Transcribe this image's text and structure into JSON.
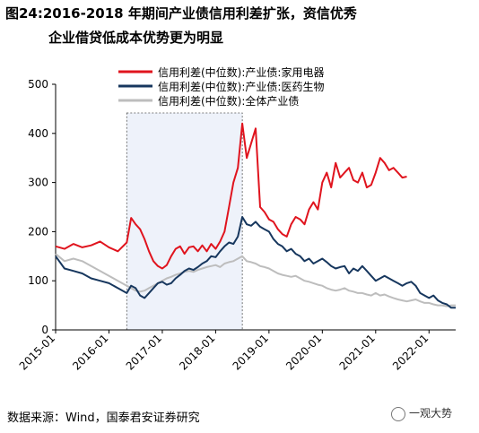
{
  "title_line1": "图24:2016-2018 年期间产业债信用利差扩张，资信优秀",
  "title_line2": "企业借贷低成本优势更为明显",
  "source_note": "数据来源：Wind，国泰君安证券研究",
  "watermark_text": "一观大势",
  "chart_data": {
    "type": "line",
    "title": "",
    "xlabel": "",
    "ylabel": "",
    "ylim": [
      0,
      500
    ],
    "yticks": [
      0,
      100,
      200,
      300,
      400,
      500
    ],
    "xlim": [
      "2015-01",
      "2022-07"
    ],
    "xticks": [
      "2015-01",
      "2016-01",
      "2017-01",
      "2018-01",
      "2019-01",
      "2020-01",
      "2021-01",
      "2022-01"
    ],
    "grid": false,
    "legend_position": "top-right",
    "shaded_period": [
      "2016-05",
      "2018-07"
    ],
    "series": [
      {
        "name": "信用利差(中位数):产业债:家用电器",
        "color": "#e0141e",
        "points": [
          [
            "2015-01",
            170
          ],
          [
            "2015-03",
            165
          ],
          [
            "2015-05",
            175
          ],
          [
            "2015-07",
            168
          ],
          [
            "2015-09",
            172
          ],
          [
            "2015-11",
            180
          ],
          [
            "2016-01",
            168
          ],
          [
            "2016-03",
            160
          ],
          [
            "2016-05",
            178
          ],
          [
            "2016-06",
            228
          ],
          [
            "2016-07",
            215
          ],
          [
            "2016-08",
            205
          ],
          [
            "2016-09",
            185
          ],
          [
            "2016-10",
            160
          ],
          [
            "2016-11",
            140
          ],
          [
            "2016-12",
            130
          ],
          [
            "2017-01",
            125
          ],
          [
            "2017-02",
            132
          ],
          [
            "2017-03",
            150
          ],
          [
            "2017-04",
            165
          ],
          [
            "2017-05",
            170
          ],
          [
            "2017-06",
            155
          ],
          [
            "2017-07",
            168
          ],
          [
            "2017-08",
            170
          ],
          [
            "2017-09",
            160
          ],
          [
            "2017-10",
            172
          ],
          [
            "2017-11",
            160
          ],
          [
            "2017-12",
            175
          ],
          [
            "2018-01",
            165
          ],
          [
            "2018-02",
            180
          ],
          [
            "2018-03",
            200
          ],
          [
            "2018-04",
            250
          ],
          [
            "2018-05",
            300
          ],
          [
            "2018-06",
            330
          ],
          [
            "2018-07",
            420
          ],
          [
            "2018-08",
            350
          ],
          [
            "2018-09",
            380
          ],
          [
            "2018-10",
            410
          ],
          [
            "2018-11",
            250
          ],
          [
            "2018-12",
            240
          ],
          [
            "2019-01",
            225
          ],
          [
            "2019-02",
            220
          ],
          [
            "2019-03",
            205
          ],
          [
            "2019-04",
            195
          ],
          [
            "2019-05",
            190
          ],
          [
            "2019-06",
            215
          ],
          [
            "2019-07",
            230
          ],
          [
            "2019-08",
            225
          ],
          [
            "2019-09",
            215
          ],
          [
            "2019-10",
            245
          ],
          [
            "2019-11",
            260
          ],
          [
            "2019-12",
            245
          ],
          [
            "2020-01",
            300
          ],
          [
            "2020-02",
            320
          ],
          [
            "2020-03",
            290
          ],
          [
            "2020-04",
            340
          ],
          [
            "2020-05",
            310
          ],
          [
            "2020-06",
            320
          ],
          [
            "2020-07",
            330
          ],
          [
            "2020-08",
            305
          ],
          [
            "2020-09",
            300
          ],
          [
            "2020-10",
            320
          ],
          [
            "2020-11",
            290
          ],
          [
            "2020-12",
            295
          ],
          [
            "2021-01",
            320
          ],
          [
            "2021-02",
            350
          ],
          [
            "2021-03",
            340
          ],
          [
            "2021-04",
            325
          ],
          [
            "2021-05",
            330
          ],
          [
            "2021-06",
            320
          ],
          [
            "2021-07",
            310
          ],
          [
            "2021-08",
            312
          ]
        ]
      },
      {
        "name": "信用利差(中位数):产业债:医药生物",
        "color": "#17375e",
        "points": [
          [
            "2015-01",
            150
          ],
          [
            "2015-03",
            125
          ],
          [
            "2015-05",
            120
          ],
          [
            "2015-07",
            115
          ],
          [
            "2015-09",
            105
          ],
          [
            "2015-11",
            100
          ],
          [
            "2016-01",
            95
          ],
          [
            "2016-03",
            85
          ],
          [
            "2016-05",
            75
          ],
          [
            "2016-06",
            90
          ],
          [
            "2016-07",
            85
          ],
          [
            "2016-08",
            70
          ],
          [
            "2016-09",
            65
          ],
          [
            "2016-10",
            75
          ],
          [
            "2016-11",
            85
          ],
          [
            "2016-12",
            95
          ],
          [
            "2017-01",
            98
          ],
          [
            "2017-02",
            92
          ],
          [
            "2017-03",
            95
          ],
          [
            "2017-04",
            105
          ],
          [
            "2017-05",
            112
          ],
          [
            "2017-06",
            120
          ],
          [
            "2017-07",
            125
          ],
          [
            "2017-08",
            122
          ],
          [
            "2017-09",
            128
          ],
          [
            "2017-10",
            135
          ],
          [
            "2017-11",
            140
          ],
          [
            "2017-12",
            150
          ],
          [
            "2018-01",
            148
          ],
          [
            "2018-02",
            160
          ],
          [
            "2018-03",
            170
          ],
          [
            "2018-04",
            178
          ],
          [
            "2018-05",
            175
          ],
          [
            "2018-06",
            190
          ],
          [
            "2018-07",
            230
          ],
          [
            "2018-08",
            215
          ],
          [
            "2018-09",
            212
          ],
          [
            "2018-10",
            220
          ],
          [
            "2018-11",
            210
          ],
          [
            "2018-12",
            205
          ],
          [
            "2019-01",
            200
          ],
          [
            "2019-02",
            185
          ],
          [
            "2019-03",
            175
          ],
          [
            "2019-04",
            170
          ],
          [
            "2019-05",
            160
          ],
          [
            "2019-06",
            165
          ],
          [
            "2019-07",
            155
          ],
          [
            "2019-08",
            150
          ],
          [
            "2019-09",
            140
          ],
          [
            "2019-10",
            145
          ],
          [
            "2019-11",
            135
          ],
          [
            "2019-12",
            140
          ],
          [
            "2020-01",
            145
          ],
          [
            "2020-02",
            138
          ],
          [
            "2020-03",
            130
          ],
          [
            "2020-04",
            125
          ],
          [
            "2020-05",
            128
          ],
          [
            "2020-06",
            130
          ],
          [
            "2020-07",
            115
          ],
          [
            "2020-08",
            125
          ],
          [
            "2020-09",
            120
          ],
          [
            "2020-10",
            130
          ],
          [
            "2020-11",
            120
          ],
          [
            "2020-12",
            110
          ],
          [
            "2021-01",
            100
          ],
          [
            "2021-02",
            105
          ],
          [
            "2021-03",
            110
          ],
          [
            "2021-04",
            105
          ],
          [
            "2021-05",
            100
          ],
          [
            "2021-06",
            95
          ],
          [
            "2021-07",
            90
          ],
          [
            "2021-08",
            95
          ],
          [
            "2021-09",
            98
          ],
          [
            "2021-10",
            90
          ],
          [
            "2021-11",
            75
          ],
          [
            "2021-12",
            70
          ],
          [
            "2022-01",
            65
          ],
          [
            "2022-02",
            70
          ],
          [
            "2022-03",
            60
          ],
          [
            "2022-04",
            55
          ],
          [
            "2022-05",
            52
          ],
          [
            "2022-06",
            45
          ],
          [
            "2022-07",
            45
          ]
        ]
      },
      {
        "name": "信用利差(中位数):全体产业债",
        "color": "#bdbdbd",
        "points": [
          [
            "2015-01",
            155
          ],
          [
            "2015-03",
            140
          ],
          [
            "2015-05",
            145
          ],
          [
            "2015-07",
            140
          ],
          [
            "2015-09",
            130
          ],
          [
            "2015-11",
            120
          ],
          [
            "2016-01",
            110
          ],
          [
            "2016-03",
            100
          ],
          [
            "2016-05",
            90
          ],
          [
            "2016-06",
            85
          ],
          [
            "2016-07",
            80
          ],
          [
            "2016-08",
            78
          ],
          [
            "2016-09",
            80
          ],
          [
            "2016-10",
            85
          ],
          [
            "2016-11",
            90
          ],
          [
            "2016-12",
            95
          ],
          [
            "2017-01",
            100
          ],
          [
            "2017-02",
            105
          ],
          [
            "2017-03",
            108
          ],
          [
            "2017-04",
            112
          ],
          [
            "2017-05",
            115
          ],
          [
            "2017-06",
            118
          ],
          [
            "2017-07",
            120
          ],
          [
            "2017-08",
            118
          ],
          [
            "2017-09",
            122
          ],
          [
            "2017-10",
            125
          ],
          [
            "2017-11",
            128
          ],
          [
            "2017-12",
            130
          ],
          [
            "2018-01",
            132
          ],
          [
            "2018-02",
            128
          ],
          [
            "2018-03",
            135
          ],
          [
            "2018-04",
            138
          ],
          [
            "2018-05",
            140
          ],
          [
            "2018-06",
            145
          ],
          [
            "2018-07",
            150
          ],
          [
            "2018-08",
            140
          ],
          [
            "2018-09",
            138
          ],
          [
            "2018-10",
            135
          ],
          [
            "2018-11",
            130
          ],
          [
            "2018-12",
            128
          ],
          [
            "2019-01",
            125
          ],
          [
            "2019-02",
            120
          ],
          [
            "2019-03",
            115
          ],
          [
            "2019-04",
            112
          ],
          [
            "2019-05",
            110
          ],
          [
            "2019-06",
            108
          ],
          [
            "2019-07",
            110
          ],
          [
            "2019-08",
            105
          ],
          [
            "2019-09",
            100
          ],
          [
            "2019-10",
            98
          ],
          [
            "2019-11",
            95
          ],
          [
            "2019-12",
            92
          ],
          [
            "2020-01",
            90
          ],
          [
            "2020-02",
            85
          ],
          [
            "2020-03",
            82
          ],
          [
            "2020-04",
            80
          ],
          [
            "2020-05",
            82
          ],
          [
            "2020-06",
            85
          ],
          [
            "2020-07",
            80
          ],
          [
            "2020-08",
            78
          ],
          [
            "2020-09",
            75
          ],
          [
            "2020-10",
            75
          ],
          [
            "2020-11",
            72
          ],
          [
            "2020-12",
            70
          ],
          [
            "2021-01",
            75
          ],
          [
            "2021-02",
            70
          ],
          [
            "2021-03",
            72
          ],
          [
            "2021-04",
            68
          ],
          [
            "2021-05",
            65
          ],
          [
            "2021-06",
            62
          ],
          [
            "2021-07",
            60
          ],
          [
            "2021-08",
            58
          ],
          [
            "2021-09",
            60
          ],
          [
            "2021-10",
            62
          ],
          [
            "2021-11",
            58
          ],
          [
            "2021-12",
            55
          ],
          [
            "2022-01",
            55
          ],
          [
            "2022-02",
            52
          ],
          [
            "2022-03",
            50
          ],
          [
            "2022-04",
            50
          ],
          [
            "2022-05",
            48
          ],
          [
            "2022-06",
            50
          ],
          [
            "2022-07",
            50
          ]
        ]
      }
    ]
  }
}
